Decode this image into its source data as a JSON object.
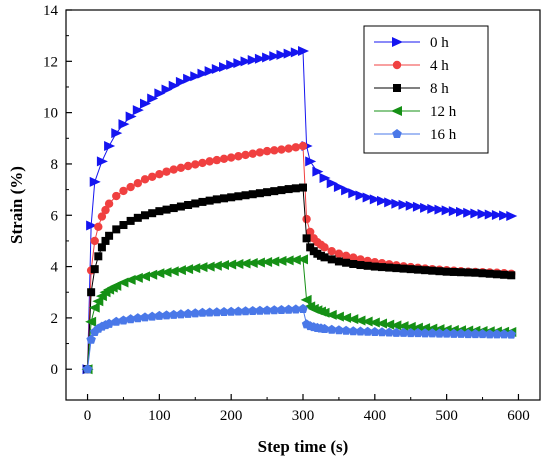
{
  "chart_data": {
    "type": "scatter",
    "title": "",
    "xlabel": "Step time (s)",
    "ylabel": "Strain (%)",
    "xlim": [
      -30,
      630
    ],
    "ylim": [
      -1.2,
      14
    ],
    "xticks": [
      0,
      100,
      200,
      300,
      400,
      500,
      600
    ],
    "yticks": [
      0,
      2,
      4,
      6,
      8,
      10,
      12,
      14
    ],
    "grid": false,
    "legend_position": "top-right",
    "series": [
      {
        "name": "0 h",
        "color": "#1515f0",
        "marker": "triangle-right",
        "x": [
          0,
          5,
          10,
          20,
          30,
          40,
          50,
          60,
          70,
          80,
          90,
          100,
          110,
          120,
          130,
          140,
          150,
          160,
          170,
          180,
          190,
          200,
          210,
          220,
          230,
          240,
          250,
          260,
          270,
          280,
          290,
          300,
          305,
          310,
          320,
          330,
          340,
          350,
          360,
          370,
          380,
          390,
          400,
          410,
          420,
          430,
          440,
          450,
          460,
          470,
          480,
          490,
          500,
          510,
          520,
          530,
          540,
          550,
          560,
          570,
          580,
          590
        ],
        "y": [
          0,
          5.6,
          7.3,
          8.1,
          8.7,
          9.2,
          9.55,
          9.85,
          10.1,
          10.35,
          10.55,
          10.75,
          10.9,
          11.05,
          11.2,
          11.32,
          11.42,
          11.52,
          11.62,
          11.7,
          11.78,
          11.86,
          11.93,
          12.0,
          12.05,
          12.1,
          12.15,
          12.2,
          12.25,
          12.3,
          12.35,
          12.4,
          8.7,
          8.1,
          7.7,
          7.45,
          7.25,
          7.1,
          6.97,
          6.86,
          6.77,
          6.69,
          6.62,
          6.56,
          6.5,
          6.45,
          6.41,
          6.37,
          6.33,
          6.29,
          6.25,
          6.22,
          6.19,
          6.16,
          6.13,
          6.1,
          6.07,
          6.05,
          6.03,
          6.01,
          5.99,
          5.97
        ]
      },
      {
        "name": "4 h",
        "color": "#f04040",
        "marker": "circle",
        "x": [
          0,
          5,
          10,
          15,
          20,
          25,
          30,
          40,
          50,
          60,
          70,
          80,
          90,
          100,
          110,
          120,
          130,
          140,
          150,
          160,
          170,
          180,
          190,
          200,
          210,
          220,
          230,
          240,
          250,
          260,
          270,
          280,
          290,
          300,
          305,
          310,
          315,
          320,
          325,
          330,
          340,
          350,
          360,
          370,
          380,
          390,
          400,
          410,
          420,
          430,
          440,
          450,
          460,
          470,
          480,
          490,
          500,
          510,
          520,
          530,
          540,
          550,
          560,
          570,
          580,
          590
        ],
        "y": [
          0,
          3.85,
          5.0,
          5.55,
          5.95,
          6.2,
          6.45,
          6.75,
          6.95,
          7.1,
          7.25,
          7.4,
          7.5,
          7.6,
          7.7,
          7.78,
          7.85,
          7.92,
          7.98,
          8.04,
          8.1,
          8.15,
          8.2,
          8.25,
          8.3,
          8.35,
          8.4,
          8.45,
          8.5,
          8.53,
          8.56,
          8.6,
          8.65,
          8.7,
          5.85,
          5.35,
          5.1,
          4.95,
          4.85,
          4.75,
          4.6,
          4.5,
          4.42,
          4.35,
          4.28,
          4.22,
          4.17,
          4.13,
          4.09,
          4.05,
          4.01,
          3.98,
          3.95,
          3.92,
          3.9,
          3.88,
          3.86,
          3.84,
          3.82,
          3.8,
          3.79,
          3.78,
          3.77,
          3.76,
          3.74,
          3.72
        ]
      },
      {
        "name": "8 h",
        "color": "#000000",
        "marker": "square",
        "x": [
          0,
          5,
          10,
          15,
          20,
          25,
          30,
          40,
          50,
          60,
          70,
          80,
          90,
          100,
          110,
          120,
          130,
          140,
          150,
          160,
          170,
          180,
          190,
          200,
          210,
          220,
          230,
          240,
          250,
          260,
          270,
          280,
          290,
          300,
          305,
          310,
          315,
          320,
          325,
          330,
          340,
          350,
          360,
          370,
          380,
          390,
          400,
          410,
          420,
          430,
          440,
          450,
          460,
          470,
          480,
          490,
          500,
          510,
          520,
          530,
          540,
          550,
          560,
          570,
          580,
          590
        ],
        "y": [
          0,
          3.0,
          3.9,
          4.4,
          4.75,
          5.0,
          5.2,
          5.45,
          5.62,
          5.78,
          5.9,
          6.0,
          6.08,
          6.16,
          6.22,
          6.28,
          6.34,
          6.4,
          6.46,
          6.52,
          6.57,
          6.62,
          6.66,
          6.7,
          6.74,
          6.78,
          6.82,
          6.86,
          6.9,
          6.94,
          6.98,
          7.02,
          7.05,
          7.08,
          5.1,
          4.75,
          4.6,
          4.5,
          4.42,
          4.36,
          4.28,
          4.2,
          4.15,
          4.1,
          4.06,
          4.03,
          4.0,
          3.98,
          3.96,
          3.94,
          3.92,
          3.9,
          3.88,
          3.86,
          3.84,
          3.82,
          3.8,
          3.79,
          3.78,
          3.77,
          3.76,
          3.74,
          3.72,
          3.7,
          3.68,
          3.66
        ]
      },
      {
        "name": "12 h",
        "color": "#159015",
        "marker": "triangle-left",
        "x": [
          0,
          5,
          10,
          15,
          20,
          25,
          30,
          35,
          40,
          50,
          60,
          70,
          80,
          90,
          100,
          110,
          120,
          130,
          140,
          150,
          160,
          170,
          180,
          190,
          200,
          210,
          220,
          230,
          240,
          250,
          260,
          270,
          280,
          290,
          300,
          305,
          310,
          315,
          320,
          325,
          330,
          340,
          350,
          360,
          370,
          380,
          390,
          400,
          410,
          420,
          430,
          440,
          450,
          460,
          470,
          480,
          490,
          500,
          510,
          520,
          530,
          540,
          550,
          560,
          570,
          580,
          590
        ],
        "y": [
          0,
          1.85,
          2.4,
          2.65,
          2.85,
          3.0,
          3.1,
          3.18,
          3.25,
          3.38,
          3.48,
          3.56,
          3.62,
          3.68,
          3.74,
          3.78,
          3.82,
          3.86,
          3.9,
          3.94,
          3.98,
          4.0,
          4.03,
          4.06,
          4.08,
          4.1,
          4.12,
          4.14,
          4.16,
          4.18,
          4.2,
          4.22,
          4.24,
          4.26,
          4.28,
          2.7,
          2.45,
          2.35,
          2.3,
          2.25,
          2.2,
          2.12,
          2.05,
          2.0,
          1.95,
          1.9,
          1.86,
          1.82,
          1.78,
          1.74,
          1.71,
          1.68,
          1.65,
          1.62,
          1.6,
          1.58,
          1.56,
          1.54,
          1.53,
          1.52,
          1.51,
          1.5,
          1.49,
          1.48,
          1.47,
          1.46,
          1.45
        ]
      },
      {
        "name": "16 h",
        "color": "#4a78e8",
        "marker": "pentagon",
        "x": [
          0,
          5,
          10,
          15,
          20,
          25,
          30,
          40,
          50,
          60,
          70,
          80,
          90,
          100,
          110,
          120,
          130,
          140,
          150,
          160,
          170,
          180,
          190,
          200,
          210,
          220,
          230,
          240,
          250,
          260,
          270,
          280,
          290,
          300,
          305,
          310,
          315,
          320,
          325,
          330,
          340,
          350,
          360,
          370,
          380,
          390,
          400,
          410,
          420,
          430,
          440,
          450,
          460,
          470,
          480,
          490,
          500,
          510,
          520,
          530,
          540,
          550,
          560,
          570,
          580,
          590
        ],
        "y": [
          0,
          1.15,
          1.45,
          1.58,
          1.66,
          1.72,
          1.77,
          1.85,
          1.9,
          1.95,
          1.99,
          2.02,
          2.05,
          2.08,
          2.1,
          2.12,
          2.14,
          2.16,
          2.18,
          2.2,
          2.21,
          2.22,
          2.23,
          2.24,
          2.25,
          2.26,
          2.27,
          2.28,
          2.29,
          2.3,
          2.31,
          2.32,
          2.33,
          2.35,
          1.75,
          1.68,
          1.64,
          1.61,
          1.59,
          1.57,
          1.54,
          1.52,
          1.5,
          1.48,
          1.47,
          1.46,
          1.45,
          1.44,
          1.43,
          1.42,
          1.42,
          1.41,
          1.41,
          1.4,
          1.4,
          1.39,
          1.39,
          1.38,
          1.38,
          1.37,
          1.37,
          1.37,
          1.36,
          1.36,
          1.36,
          1.35
        ]
      }
    ]
  }
}
